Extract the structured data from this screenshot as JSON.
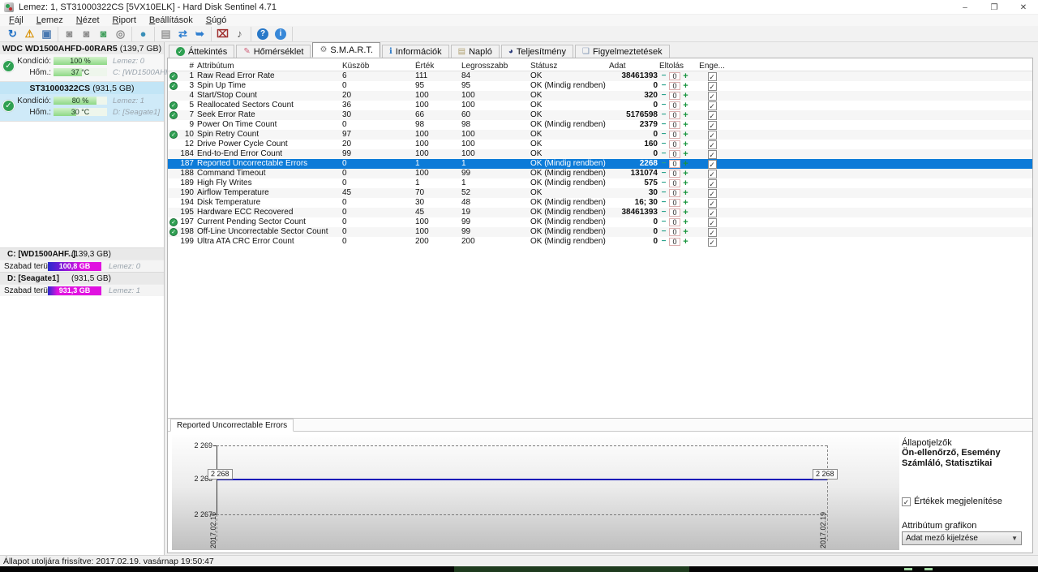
{
  "window": {
    "title": "Lemez: 1, ST31000322CS [5VX10ELK]  -  Hard Disk Sentinel 4.71",
    "controls": {
      "minimize": "–",
      "maximize": "❐",
      "close": "✕"
    }
  },
  "menu": {
    "items": [
      "Fájl",
      "Lemez",
      "Nézet",
      "Riport",
      "Beállítások",
      "Súgó"
    ]
  },
  "toolbar": {
    "groups": [
      [
        {
          "name": "refresh-icon",
          "glyph": "↻",
          "color": "#1e6fc4"
        },
        {
          "name": "warning-status-icon",
          "glyph": "⚠",
          "color": "#d89000"
        },
        {
          "name": "monitor-icon",
          "glyph": "▣",
          "color": "#4878b0"
        }
      ],
      [
        {
          "name": "disk-tool-1-icon",
          "glyph": "◙",
          "color": "#8a8a8a"
        },
        {
          "name": "disk-tool-2-icon",
          "glyph": "◙",
          "color": "#8a8a8a"
        },
        {
          "name": "disk-tool-ok-icon",
          "glyph": "◙",
          "color": "#3f9e5a"
        },
        {
          "name": "disk-search-icon",
          "glyph": "◎",
          "color": "#8a8a8a"
        }
      ],
      [
        {
          "name": "globe-icon",
          "glyph": "●",
          "color": "#3a8fb8"
        }
      ],
      [
        {
          "name": "report-icon",
          "glyph": "▤",
          "color": "#9a9a9a"
        },
        {
          "name": "sync-icon",
          "glyph": "⇄",
          "color": "#2f7fd0"
        },
        {
          "name": "network-globe-icon",
          "glyph": "➥",
          "color": "#2f7fd0"
        }
      ],
      [
        {
          "name": "monitor-settings-icon",
          "glyph": "⌧",
          "color": "#a03030"
        },
        {
          "name": "speaker-icon",
          "glyph": "♪",
          "color": "#555555"
        }
      ],
      [
        {
          "name": "help-icon",
          "glyph": "?",
          "color": "#ffffff",
          "bg": "#2878c8"
        },
        {
          "name": "info-icon",
          "glyph": "i",
          "color": "#ffffff",
          "bg": "#3888d8"
        }
      ]
    ]
  },
  "sidebar": {
    "disks": [
      {
        "name": "WDC WD1500AHFD-00RAR5",
        "size": "(139,7 GB)",
        "condition_label": "Kondíció:",
        "condition_value": "100 %",
        "condition_pct": 100,
        "temp_label": "Hőm.:",
        "temp_value": "37 °C",
        "temp_pct": 53,
        "lemez": "Lemez: 0",
        "drive": "C: [WD1500AHFD]",
        "selected": false
      },
      {
        "name": "ST31000322CS",
        "size": "(931,5 GB)",
        "condition_label": "Kondíció:",
        "condition_value": "80 %",
        "condition_pct": 80,
        "temp_label": "Hőm.:",
        "temp_value": "30 °C",
        "temp_pct": 43,
        "lemez": "Lemez: 1",
        "drive": "D: [Seagate1]",
        "selected": true
      }
    ],
    "partitions": [
      {
        "name": "C: [WD1500AHF..]",
        "size": "(139,3 GB)",
        "free_label": "Szabad terület",
        "free_value": "100,8 GB",
        "lemez": "Lemez: 0",
        "bar": "c"
      },
      {
        "name": "D: [Seagate1]",
        "size": "(931,5 GB)",
        "free_label": "Szabad terület",
        "free_value": "931,3 GB",
        "lemez": "Lemez: 1",
        "bar": "d"
      }
    ]
  },
  "tabs": [
    {
      "label": "Áttekintés",
      "icon": "check-circle",
      "selected": false
    },
    {
      "label": "Hőmérséklet",
      "icon": "thermometer",
      "selected": false
    },
    {
      "label": "S.M.A.R.T.",
      "icon": "gauge",
      "selected": true
    },
    {
      "label": "Információk",
      "icon": "info",
      "selected": false
    },
    {
      "label": "Napló",
      "icon": "log",
      "selected": false
    },
    {
      "label": "Teljesítmény",
      "icon": "performance",
      "selected": false
    },
    {
      "label": "Figyelmeztetések",
      "icon": "alerts",
      "selected": false
    }
  ],
  "table": {
    "headers": [
      "#",
      "Attribútum",
      "Küszöb",
      "Érték",
      "Legrosszabb",
      "Státusz",
      "Adat",
      "Eltolás",
      "Enge..."
    ],
    "offset_controls": {
      "minus": "−",
      "value": "0",
      "plus": "+"
    },
    "rows": [
      {
        "id": "1",
        "name": "Raw Read Error Rate",
        "threshold": "6",
        "value": "111",
        "worst": "84",
        "status": "OK",
        "data": "38461393",
        "ok_icon": true,
        "selected": false
      },
      {
        "id": "3",
        "name": "Spin Up Time",
        "threshold": "0",
        "value": "95",
        "worst": "95",
        "status": "OK (Mindig rendben)",
        "data": "0",
        "ok_icon": true,
        "selected": false
      },
      {
        "id": "4",
        "name": "Start/Stop Count",
        "threshold": "20",
        "value": "100",
        "worst": "100",
        "status": "OK",
        "data": "320",
        "ok_icon": false,
        "selected": false
      },
      {
        "id": "5",
        "name": "Reallocated Sectors Count",
        "threshold": "36",
        "value": "100",
        "worst": "100",
        "status": "OK",
        "data": "0",
        "ok_icon": true,
        "selected": false
      },
      {
        "id": "7",
        "name": "Seek Error Rate",
        "threshold": "30",
        "value": "66",
        "worst": "60",
        "status": "OK",
        "data": "5176598",
        "ok_icon": true,
        "selected": false
      },
      {
        "id": "9",
        "name": "Power On Time Count",
        "threshold": "0",
        "value": "98",
        "worst": "98",
        "status": "OK (Mindig rendben)",
        "data": "2379",
        "ok_icon": false,
        "selected": false
      },
      {
        "id": "10",
        "name": "Spin Retry Count",
        "threshold": "97",
        "value": "100",
        "worst": "100",
        "status": "OK",
        "data": "0",
        "ok_icon": true,
        "selected": false
      },
      {
        "id": "12",
        "name": "Drive Power Cycle Count",
        "threshold": "20",
        "value": "100",
        "worst": "100",
        "status": "OK",
        "data": "160",
        "ok_icon": false,
        "selected": false
      },
      {
        "id": "184",
        "name": "End-to-End Error Count",
        "threshold": "99",
        "value": "100",
        "worst": "100",
        "status": "OK",
        "data": "0",
        "ok_icon": false,
        "selected": false
      },
      {
        "id": "187",
        "name": "Reported Uncorrectable Errors",
        "threshold": "0",
        "value": "1",
        "worst": "1",
        "status": "OK (Mindig rendben)",
        "data": "2268",
        "ok_icon": false,
        "selected": true
      },
      {
        "id": "188",
        "name": "Command Timeout",
        "threshold": "0",
        "value": "100",
        "worst": "99",
        "status": "OK (Mindig rendben)",
        "data": "131074",
        "ok_icon": false,
        "selected": false
      },
      {
        "id": "189",
        "name": "High Fly Writes",
        "threshold": "0",
        "value": "1",
        "worst": "1",
        "status": "OK (Mindig rendben)",
        "data": "575",
        "ok_icon": false,
        "selected": false
      },
      {
        "id": "190",
        "name": "Airflow Temperature",
        "threshold": "45",
        "value": "70",
        "worst": "52",
        "status": "OK",
        "data": "30",
        "ok_icon": false,
        "selected": false
      },
      {
        "id": "194",
        "name": "Disk Temperature",
        "threshold": "0",
        "value": "30",
        "worst": "48",
        "status": "OK (Mindig rendben)",
        "data": "16; 30",
        "ok_icon": false,
        "selected": false
      },
      {
        "id": "195",
        "name": "Hardware ECC Recovered",
        "threshold": "0",
        "value": "45",
        "worst": "19",
        "status": "OK (Mindig rendben)",
        "data": "38461393",
        "ok_icon": false,
        "selected": false
      },
      {
        "id": "197",
        "name": "Current Pending Sector Count",
        "threshold": "0",
        "value": "100",
        "worst": "99",
        "status": "OK (Mindig rendben)",
        "data": "0",
        "ok_icon": true,
        "selected": false
      },
      {
        "id": "198",
        "name": "Off-Line Uncorrectable Sector Count",
        "threshold": "0",
        "value": "100",
        "worst": "99",
        "status": "OK (Mindig rendben)",
        "data": "0",
        "ok_icon": true,
        "selected": false
      },
      {
        "id": "199",
        "name": "Ultra ATA CRC Error Count",
        "threshold": "0",
        "value": "200",
        "worst": "200",
        "status": "OK (Mindig rendben)",
        "data": "0",
        "ok_icon": false,
        "selected": false
      }
    ]
  },
  "chart_panel": {
    "tab_label": "Reported Uncorrectable Errors",
    "chart_data": {
      "type": "line",
      "title": "Reported Uncorrectable Errors",
      "x": [
        "2017.02.16",
        "2017.02.19"
      ],
      "series": [
        {
          "name": "Adat",
          "values": [
            2268,
            2268
          ]
        }
      ],
      "yticks": [
        "2 269",
        "2 268",
        "2 267"
      ],
      "ylim": [
        2267,
        2269
      ],
      "point_labels": [
        "2 268",
        "2 268"
      ],
      "grid": "dashed",
      "line_color": "#1717b8",
      "legend_position": "none"
    },
    "options": {
      "header": "Állapotjelzők",
      "flags": "Ön-ellenőrző, Esemény Számláló, Statisztikai",
      "values_checkbox": "Értékek megjelenítése",
      "attr_label": "Attribútum grafikon",
      "dropdown": "Adat mező kijelzése"
    }
  },
  "status_bar": {
    "text": "Állapot utoljára frissítve: 2017.02.19. vasárnap 19:50:47"
  }
}
